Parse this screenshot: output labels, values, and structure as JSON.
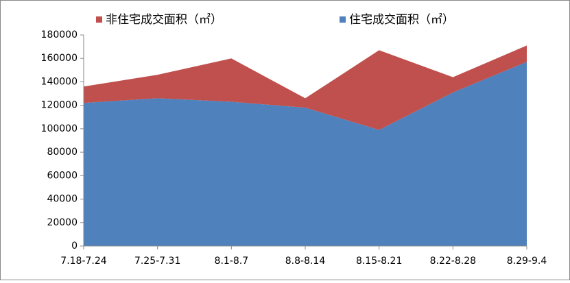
{
  "chart_data": {
    "type": "stacked-area",
    "categories": [
      "7.18-7.24",
      "7.25-7.31",
      "8.1-8.7",
      "8.8-8.14",
      "8.15-8.21",
      "8.22-8.28",
      "8.29-9.4"
    ],
    "series": [
      {
        "name": "住宅成交面积（㎡）",
        "color": "#4f81bd",
        "values": [
          122000,
          126000,
          123000,
          118000,
          99000,
          131000,
          157000
        ]
      },
      {
        "name": "非住宅成交面积（㎡）",
        "color": "#c0504d",
        "values": [
          14000,
          20000,
          37000,
          8000,
          68000,
          13000,
          14000
        ]
      }
    ],
    "ylim": [
      0,
      180000
    ],
    "yticks": [
      0,
      20000,
      40000,
      60000,
      80000,
      100000,
      120000,
      140000,
      160000,
      180000
    ],
    "grid": false
  }
}
